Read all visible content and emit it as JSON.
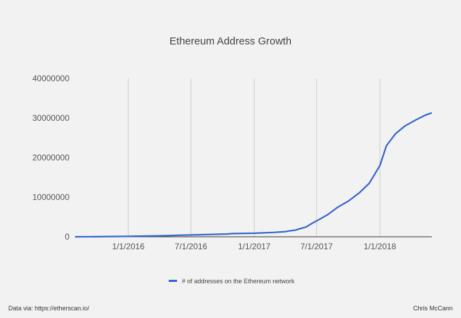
{
  "chart_data": {
    "type": "line",
    "title": "Ethereum Address Growth",
    "xlabel": "",
    "ylabel": "",
    "ylim": [
      0,
      40000000
    ],
    "yticks": [
      0,
      10000000,
      20000000,
      30000000,
      40000000
    ],
    "ytick_labels": [
      "0",
      "10000000",
      "20000000",
      "30000000",
      "40000000"
    ],
    "xlim": [
      "2015-07-30",
      "2018-06-01"
    ],
    "xticks": [
      "2016-01-01",
      "2016-07-01",
      "2017-01-01",
      "2017-07-01",
      "2018-01-01"
    ],
    "xtick_labels": [
      "1/1/2016",
      "7/1/2016",
      "1/1/2017",
      "7/1/2017",
      "1/1/2018"
    ],
    "grid": {
      "vertical": true,
      "horizontal": false
    },
    "legend": "bottom",
    "series": [
      {
        "name": "# of addresses on the Ethereum network",
        "color": "#3366cc",
        "points": [
          {
            "x": "2015-07-30",
            "y": 0
          },
          {
            "x": "2015-10-01",
            "y": 20000
          },
          {
            "x": "2016-01-01",
            "y": 100000
          },
          {
            "x": "2016-04-01",
            "y": 250000
          },
          {
            "x": "2016-07-01",
            "y": 450000
          },
          {
            "x": "2016-09-01",
            "y": 600000
          },
          {
            "x": "2016-10-15",
            "y": 700000
          },
          {
            "x": "2016-11-01",
            "y": 800000
          },
          {
            "x": "2017-01-01",
            "y": 900000
          },
          {
            "x": "2017-03-01",
            "y": 1100000
          },
          {
            "x": "2017-04-01",
            "y": 1300000
          },
          {
            "x": "2017-05-01",
            "y": 1700000
          },
          {
            "x": "2017-06-01",
            "y": 2500000
          },
          {
            "x": "2017-06-20",
            "y": 3500000
          },
          {
            "x": "2017-07-01",
            "y": 4000000
          },
          {
            "x": "2017-08-01",
            "y": 5500000
          },
          {
            "x": "2017-09-01",
            "y": 7500000
          },
          {
            "x": "2017-10-01",
            "y": 9000000
          },
          {
            "x": "2017-11-01",
            "y": 11000000
          },
          {
            "x": "2017-12-01",
            "y": 13500000
          },
          {
            "x": "2018-01-01",
            "y": 18000000
          },
          {
            "x": "2018-01-20",
            "y": 23000000
          },
          {
            "x": "2018-02-15",
            "y": 26000000
          },
          {
            "x": "2018-03-15",
            "y": 28000000
          },
          {
            "x": "2018-04-15",
            "y": 29500000
          },
          {
            "x": "2018-05-15",
            "y": 30800000
          },
          {
            "x": "2018-06-01",
            "y": 31300000
          }
        ]
      }
    ]
  },
  "footer": {
    "source": "Data via: https://etherscan.io/",
    "author": "Chris McCann"
  },
  "colors": {
    "background": "#f2f2f2",
    "line": "#3366cc",
    "grid": "#cccccc",
    "axis": "#333333"
  }
}
